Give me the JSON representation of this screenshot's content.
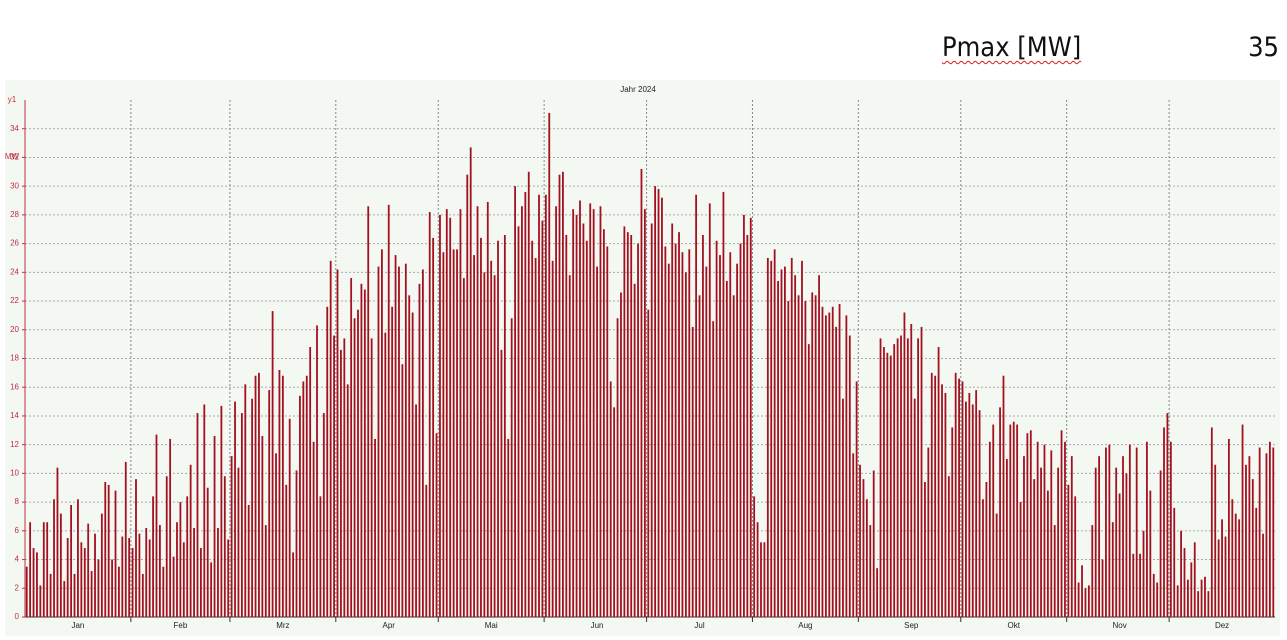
{
  "header": {
    "label": "Pmax [MW]",
    "value": 35
  },
  "chart_data": {
    "type": "bar",
    "title": "Jahr 2024",
    "y_name": "y1",
    "y_unit": "MW",
    "color": "#a3101e",
    "xlim": [
      0.5,
      366.5
    ],
    "ylim": [
      0,
      36
    ],
    "grid": true,
    "yticks": [
      0,
      2,
      4,
      6,
      8,
      10,
      12,
      14,
      16,
      18,
      20,
      22,
      24,
      26,
      28,
      30,
      32,
      34
    ],
    "xgrid": [
      31.5,
      60.5,
      91.5,
      121.5,
      152.5,
      182.5,
      213.5,
      244.5,
      274.5,
      305.5,
      335.5
    ],
    "xticks": [
      {
        "value": 16,
        "label": "Jan"
      },
      {
        "value": 46,
        "label": "Feb"
      },
      {
        "value": 76,
        "label": "Mrz"
      },
      {
        "value": 107,
        "label": "Apr"
      },
      {
        "value": 137,
        "label": "Mai"
      },
      {
        "value": 168,
        "label": "Jun"
      },
      {
        "value": 198,
        "label": "Jul"
      },
      {
        "value": 229,
        "label": "Aug"
      },
      {
        "value": 260,
        "label": "Sep"
      },
      {
        "value": 290,
        "label": "Okt"
      },
      {
        "value": 321,
        "label": "Nov"
      },
      {
        "value": 351,
        "label": "Dez"
      }
    ],
    "x": [
      1,
      2,
      3,
      4,
      5,
      6,
      7,
      8,
      9,
      10,
      11,
      12,
      13,
      14,
      15,
      16,
      17,
      18,
      19,
      20,
      21,
      22,
      23,
      24,
      25,
      26,
      27,
      28,
      29,
      30,
      31,
      32,
      33,
      34,
      35,
      36,
      37,
      38,
      39,
      40,
      41,
      42,
      43,
      44,
      45,
      46,
      47,
      48,
      49,
      50,
      51,
      52,
      53,
      54,
      55,
      56,
      57,
      58,
      59,
      60,
      61,
      62,
      63,
      64,
      65,
      66,
      67,
      68,
      69,
      70,
      71,
      72,
      73,
      74,
      75,
      76,
      77,
      78,
      79,
      80,
      81,
      82,
      83,
      84,
      85,
      86,
      87,
      88,
      89,
      90,
      91,
      92,
      93,
      94,
      95,
      96,
      97,
      98,
      99,
      100,
      101,
      102,
      103,
      104,
      105,
      106,
      107,
      108,
      109,
      110,
      111,
      112,
      113,
      114,
      115,
      116,
      117,
      118,
      119,
      120,
      121,
      122,
      123,
      124,
      125,
      126,
      127,
      128,
      129,
      130,
      131,
      132,
      133,
      134,
      135,
      136,
      137,
      138,
      139,
      140,
      141,
      142,
      143,
      144,
      145,
      146,
      147,
      148,
      149,
      150,
      151,
      152,
      153,
      154,
      155,
      156,
      157,
      158,
      159,
      160,
      161,
      162,
      163,
      164,
      165,
      166,
      167,
      168,
      169,
      170,
      171,
      172,
      173,
      174,
      175,
      176,
      177,
      178,
      179,
      180,
      181,
      182,
      183,
      184,
      185,
      186,
      187,
      188,
      189,
      190,
      191,
      192,
      193,
      194,
      195,
      196,
      197,
      198,
      199,
      200,
      201,
      202,
      203,
      204,
      205,
      206,
      207,
      208,
      209,
      210,
      211,
      212,
      213,
      214,
      215,
      216,
      217,
      218,
      219,
      220,
      221,
      222,
      223,
      224,
      225,
      226,
      227,
      228,
      229,
      230,
      231,
      232,
      233,
      234,
      235,
      236,
      237,
      238,
      239,
      240,
      241,
      242,
      243,
      244,
      245,
      246,
      247,
      248,
      249,
      250,
      251,
      252,
      253,
      254,
      255,
      256,
      257,
      258,
      259,
      260,
      261,
      262,
      263,
      264,
      265,
      266,
      267,
      268,
      269,
      270,
      271,
      272,
      273,
      274,
      275,
      276,
      277,
      278,
      279,
      280,
      281,
      282,
      283,
      284,
      285,
      286,
      287,
      288,
      289,
      290,
      291,
      292,
      293,
      294,
      295,
      296,
      297,
      298,
      299,
      300,
      301,
      302,
      303,
      304,
      305,
      306,
      307,
      308,
      309,
      310,
      311,
      312,
      313,
      314,
      315,
      316,
      317,
      318,
      319,
      320,
      321,
      322,
      323,
      324,
      325,
      326,
      327,
      328,
      329,
      330,
      331,
      332,
      333,
      334,
      335,
      336,
      337,
      338,
      339,
      340,
      341,
      342,
      343,
      344,
      345,
      346,
      347,
      348,
      349,
      350,
      351,
      352,
      353,
      354,
      355,
      356,
      357,
      358,
      359,
      360,
      361,
      362,
      363,
      364,
      365,
      366
    ],
    "values": [
      3.5,
      6.6,
      4.8,
      4.5,
      2.2,
      6.6,
      6.6,
      3,
      8.2,
      10.4,
      7.2,
      2.5,
      5.5,
      7.8,
      3,
      8.2,
      5.2,
      4.8,
      6.5,
      3.2,
      5.8,
      4,
      7.2,
      9.4,
      9.2,
      4,
      8.8,
      3.5,
      5.6,
      10.8,
      5.5,
      4.8,
      9.6,
      5.8,
      3,
      6.2,
      5.4,
      8.4,
      12.7,
      6.4,
      3.5,
      9.8,
      12.4,
      4.2,
      6.6,
      8,
      5.2,
      8.4,
      10.6,
      6.2,
      14.2,
      4.8,
      14.8,
      9,
      3.8,
      12.6,
      6.2,
      14.7,
      9.8,
      5.4,
      11.2,
      15,
      10.4,
      14.2,
      16.2,
      7.8,
      15.2,
      16.8,
      17,
      12.6,
      6.4,
      15.8,
      21.3,
      11.4,
      17.2,
      16.8,
      9.2,
      13.8,
      4.5,
      10.2,
      15.4,
      16.4,
      16.8,
      18.8,
      12.2,
      20.3,
      8.4,
      14.2,
      21.6,
      24.8,
      19.6,
      24.2,
      18.6,
      19.4,
      16.2,
      23.6,
      20.8,
      21.4,
      23.2,
      22.8,
      28.6,
      19.4,
      12.4,
      24.4,
      25.6,
      19.8,
      28.7,
      21.6,
      25.2,
      24.4,
      17.6,
      24.6,
      22.4,
      21.2,
      14.8,
      23.2,
      24.2,
      9.2,
      28.2,
      26.4,
      12.8,
      28,
      25.4,
      28.4,
      27.8,
      25.6,
      25.6,
      28.4,
      23.6,
      30.8,
      32.7,
      25.2,
      28.6,
      26.4,
      24,
      28.9,
      24.8,
      23.8,
      26.2,
      18.6,
      26.6,
      12.4,
      20.8,
      30,
      27.2,
      28.6,
      29.6,
      31,
      26.2,
      25,
      29.4,
      27.6,
      29.4,
      35.1,
      24.8,
      28.6,
      30.8,
      31,
      26.6,
      23.8,
      28.4,
      28,
      29,
      27.4,
      26.2,
      28.8,
      28.4,
      24.4,
      28.6,
      27,
      25.8,
      16.4,
      14.6,
      20.8,
      22.6,
      27.2,
      26.8,
      26.6,
      23.2,
      26,
      31.2,
      28.4,
      21.4,
      27.4,
      30,
      29.8,
      29.2,
      25.8,
      24.6,
      27.4,
      26,
      26.8,
      25.4,
      24,
      25.6,
      20.2,
      29.4,
      22.4,
      26.6,
      24.4,
      28.8,
      20.6,
      26.2,
      25.2,
      29.6,
      23.4,
      25.4,
      22.4,
      24.6,
      26,
      28,
      26.6,
      27.8,
      8.4,
      6.6,
      5.2,
      5.2,
      25,
      24.8,
      25.6,
      23.4,
      24.2,
      24.4,
      22,
      25,
      23.8,
      22.4,
      24.8,
      22,
      19,
      22.6,
      22.4,
      23.8,
      21.6,
      21,
      21.2,
      21.6,
      20.2,
      21.8,
      15.2,
      21,
      19.6,
      11.4,
      16.4,
      10.6,
      9.6,
      8.2,
      6.4,
      10.2,
      3.4,
      19.4,
      18.8,
      18.4,
      18.2,
      19,
      19.4,
      19.6,
      21.2,
      19.4,
      20.4,
      15.2,
      19.4,
      20.2,
      9.4,
      11.8,
      17,
      16.8,
      18.8,
      16.2,
      15.6,
      9.8,
      13.2,
      17,
      16.6,
      16.4,
      15,
      15.6,
      14.8,
      15.8,
      14.4,
      8.2,
      9.4,
      12.2,
      13.4,
      7.2,
      14.6,
      16.8,
      11,
      13.4,
      13.6,
      13.4,
      8,
      11.2,
      12.8,
      13,
      9.6,
      12.2,
      10.4,
      12,
      8.8,
      11.6,
      6.4,
      10.4,
      13,
      12.2,
      9.2,
      11.2,
      8.4,
      2.4,
      3.6,
      2,
      2.2,
      6.4,
      10.4,
      11.2,
      4,
      11.8,
      12,
      6.6,
      10.4,
      8.6,
      11.2,
      10,
      12,
      4.4,
      11.8,
      4.4,
      6,
      12.2,
      8.8,
      3,
      2.4,
      10.2,
      13.2,
      14.2,
      12.2,
      7.6,
      2.2,
      6,
      4.8,
      2.6,
      3.8,
      5.2,
      1.8,
      2.6,
      2.8,
      1.8,
      13.2,
      10.6,
      5.4,
      6.8,
      5.6,
      12.4,
      8.2,
      7.2,
      6.8,
      13.4,
      10.6,
      11.2,
      9.6,
      7.6,
      11.8,
      5.8,
      11.4,
      12.2,
      11.8
    ]
  }
}
